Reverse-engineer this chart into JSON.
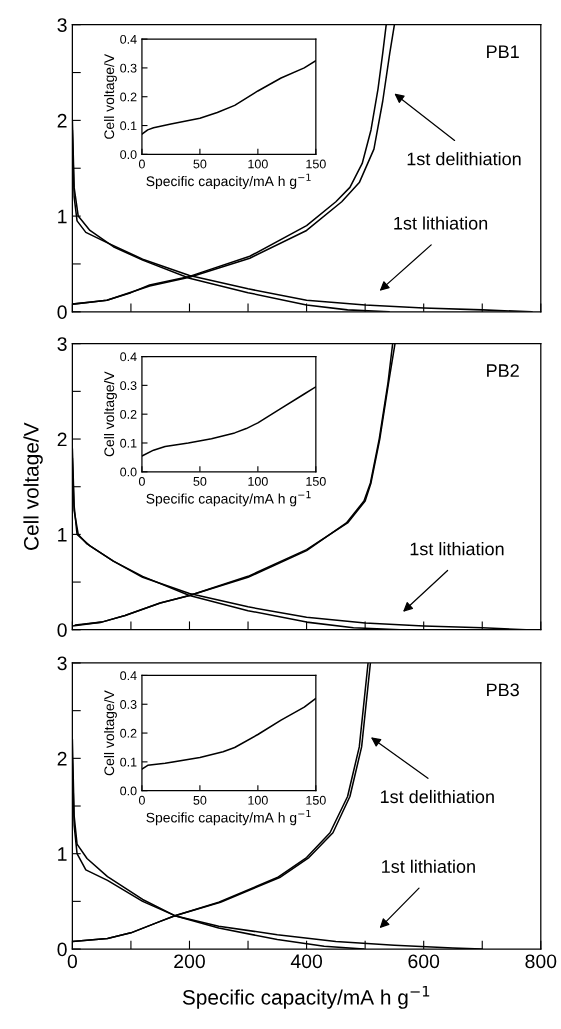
{
  "chart_data": [
    {
      "type": "line",
      "title": "PB1",
      "xlim": [
        0,
        800
      ],
      "ylim": [
        0,
        3
      ],
      "tick_labels": "y",
      "xticks": [
        {
          "value": 0,
          "label": null
        },
        {
          "value": 100,
          "label": null
        },
        {
          "value": 200,
          "label": null
        },
        {
          "value": 300,
          "label": null
        },
        {
          "value": 400,
          "label": null
        },
        {
          "value": 500,
          "label": null
        },
        {
          "value": 600,
          "label": null
        },
        {
          "value": 700,
          "label": null
        },
        {
          "value": 800,
          "label": null
        }
      ],
      "yticks": [
        0,
        {
          "value": 0.5,
          "label": null
        },
        1,
        {
          "value": 1.5,
          "label": null
        },
        2,
        {
          "value": 2.5,
          "label": null
        },
        3
      ],
      "annotations": [
        "1st delithiation",
        "1st lithiation"
      ],
      "series": [
        {
          "color": "#000000",
          "x": [
            0,
            3,
            10,
            30,
            70,
            120,
            200,
            300,
            400,
            470,
            541
          ],
          "values": [
            2.0,
            1.3,
            1.0,
            0.85,
            0.68,
            0.54,
            0.35,
            0.2,
            0.07,
            0.02,
            0
          ]
        },
        {
          "color": "#000000",
          "x": [
            0,
            3,
            8,
            23,
            60,
            120,
            200,
            300,
            400,
            500,
            600,
            700,
            785
          ],
          "values": [
            1.9,
            1.2,
            0.95,
            0.83,
            0.72,
            0.55,
            0.38,
            0.24,
            0.12,
            0.07,
            0.04,
            0.02,
            0
          ]
        },
        {
          "color": "#000000",
          "x": [
            0,
            30,
            59,
            100,
            132,
            200,
            303,
            400,
            450,
            474,
            495,
            510,
            522,
            530,
            536
          ],
          "values": [
            0.08,
            0.1,
            0.12,
            0.2,
            0.28,
            0.37,
            0.58,
            0.9,
            1.15,
            1.3,
            1.55,
            1.9,
            2.33,
            2.7,
            3.0
          ]
        },
        {
          "color": "#000000",
          "x": [
            0,
            59,
            132,
            200,
            303,
            400,
            460,
            490,
            515,
            530,
            542,
            550
          ],
          "values": [
            0.08,
            0.12,
            0.27,
            0.36,
            0.56,
            0.85,
            1.15,
            1.35,
            1.7,
            2.2,
            2.7,
            3.0
          ]
        }
      ]
    },
    {
      "type": "line",
      "xlabel": "Specific capacity/mA h g$^{−1}$",
      "ylabel": "Cell voltage/V",
      "xlim": [
        0,
        150
      ],
      "ylim": [
        0,
        0.4
      ],
      "xticks": [
        0,
        50,
        100,
        150
      ],
      "yticks": [
        {
          "value": 0,
          "label": "0.0"
        },
        0.1,
        0.2,
        0.3,
        0.4
      ],
      "series": [
        {
          "color": "#000000",
          "x": [
            0,
            5,
            10,
            25,
            50,
            65,
            80,
            100,
            120,
            140,
            150
          ],
          "values": [
            0.07,
            0.085,
            0.092,
            0.105,
            0.125,
            0.145,
            0.17,
            0.22,
            0.265,
            0.3,
            0.325
          ]
        }
      ]
    },
    {
      "type": "line",
      "title": "PB2",
      "ylabel": "Cell voltage/V",
      "xlim": [
        0,
        800
      ],
      "ylim": [
        0,
        3
      ],
      "tick_labels": "y",
      "xticks": [
        {
          "value": 0,
          "label": null
        },
        {
          "value": 100,
          "label": null
        },
        {
          "value": 200,
          "label": null
        },
        {
          "value": 300,
          "label": null
        },
        {
          "value": 400,
          "label": null
        },
        {
          "value": 500,
          "label": null
        },
        {
          "value": 600,
          "label": null
        },
        {
          "value": 700,
          "label": null
        },
        {
          "value": 800,
          "label": null
        }
      ],
      "yticks": [
        0,
        {
          "value": 0.5,
          "label": null
        },
        1,
        {
          "value": 1.5,
          "label": null
        },
        2,
        {
          "value": 2.5,
          "label": null
        },
        3
      ],
      "annotations": [
        "1st lithiation"
      ],
      "series": [
        {
          "color": "#000000",
          "x": [
            0,
            3,
            8,
            30,
            70,
            120,
            200,
            300,
            400,
            480,
            560
          ],
          "values": [
            1.9,
            1.3,
            1.0,
            0.88,
            0.72,
            0.56,
            0.36,
            0.2,
            0.08,
            0.02,
            0
          ]
        },
        {
          "color": "#000000",
          "x": [
            0,
            3,
            10,
            25,
            70,
            120,
            200,
            300,
            400,
            500,
            600,
            700,
            775
          ],
          "values": [
            1.8,
            1.25,
            1.0,
            0.9,
            0.72,
            0.55,
            0.38,
            0.24,
            0.13,
            0.07,
            0.04,
            0.02,
            0
          ]
        },
        {
          "color": "#000000",
          "x": [
            0,
            50,
            90,
            150,
            200,
            300,
            400,
            470,
            500,
            510,
            525,
            540,
            551
          ],
          "values": [
            0.04,
            0.08,
            0.15,
            0.28,
            0.36,
            0.56,
            0.84,
            1.12,
            1.35,
            1.54,
            2.0,
            2.59,
            3.0
          ]
        },
        {
          "color": "#000000",
          "x": [
            5,
            50,
            90,
            150,
            200,
            300,
            400,
            468,
            498,
            509,
            524,
            539,
            547
          ],
          "values": [
            0.05,
            0.08,
            0.15,
            0.28,
            0.36,
            0.55,
            0.83,
            1.12,
            1.35,
            1.54,
            2.0,
            2.59,
            3.0
          ]
        }
      ]
    },
    {
      "type": "line",
      "xlabel": "Specific capacity/mA h g$^{−1}$",
      "ylabel": "Cell voltage/V",
      "xlim": [
        0,
        150
      ],
      "ylim": [
        0,
        0.4
      ],
      "xticks": [
        0,
        50,
        100,
        150
      ],
      "yticks": [
        {
          "value": 0,
          "label": "0.0"
        },
        0.1,
        0.2,
        0.3,
        0.4
      ],
      "series": [
        {
          "color": "#000000",
          "x": [
            0,
            10,
            20,
            40,
            60,
            80,
            90,
            100,
            120,
            140,
            150
          ],
          "values": [
            0.055,
            0.075,
            0.088,
            0.1,
            0.115,
            0.135,
            0.15,
            0.17,
            0.22,
            0.27,
            0.295
          ]
        }
      ]
    },
    {
      "type": "line",
      "title": "PB3",
      "xlabel": "Specific capacity/mA h g$^{−1}$",
      "xlim": [
        0,
        800
      ],
      "ylim": [
        0,
        3
      ],
      "xticks": [
        0,
        {
          "value": 100,
          "label": null
        },
        200,
        {
          "value": 300,
          "label": null
        },
        400,
        {
          "value": 500,
          "label": null
        },
        600,
        {
          "value": 700,
          "label": null
        },
        800
      ],
      "yticks": [
        0,
        {
          "value": 0.5,
          "label": null
        },
        1,
        {
          "value": 1.5,
          "label": null
        },
        2,
        {
          "value": 2.5,
          "label": null
        },
        3
      ],
      "annotations": [
        "1st delithiation",
        "1st lithiation"
      ],
      "series": [
        {
          "color": "#000000",
          "x": [
            0,
            3,
            8,
            25,
            60,
            120,
            175,
            250,
            350,
            430,
            498
          ],
          "values": [
            2.2,
            1.4,
            1.1,
            0.95,
            0.76,
            0.52,
            0.35,
            0.22,
            0.1,
            0.03,
            0
          ]
        },
        {
          "color": "#000000",
          "x": [
            0,
            3,
            8,
            23,
            60,
            120,
            175,
            250,
            350,
            450,
            550,
            650,
            700
          ],
          "values": [
            2.0,
            1.3,
            1.0,
            0.83,
            0.72,
            0.5,
            0.35,
            0.24,
            0.15,
            0.08,
            0.04,
            0.01,
            0
          ]
        },
        {
          "color": "#000000",
          "x": [
            0,
            60,
            100,
            150,
            175,
            250,
            350,
            400,
            440,
            470,
            490,
            505
          ],
          "values": [
            0.08,
            0.11,
            0.17,
            0.29,
            0.35,
            0.49,
            0.75,
            0.96,
            1.22,
            1.6,
            2.12,
            3.0
          ]
        },
        {
          "color": "#000000",
          "x": [
            0,
            60,
            100,
            150,
            175,
            253,
            354,
            404,
            445,
            474,
            494,
            509
          ],
          "values": [
            0.08,
            0.11,
            0.17,
            0.29,
            0.35,
            0.49,
            0.75,
            0.96,
            1.22,
            1.6,
            2.12,
            3.0
          ]
        }
      ]
    },
    {
      "type": "line",
      "xlabel": "Specific capacity/mA h g$^{−1}$",
      "ylabel": "Cell voltage/V",
      "xlim": [
        0,
        150
      ],
      "ylim": [
        0,
        0.4
      ],
      "xticks": [
        0,
        50,
        100,
        150
      ],
      "yticks": [
        {
          "value": 0,
          "label": "0.0"
        },
        0.1,
        0.2,
        0.3,
        0.4
      ],
      "series": [
        {
          "color": "#000000",
          "x": [
            0,
            5,
            20,
            50,
            70,
            80,
            100,
            120,
            140,
            150
          ],
          "values": [
            0.075,
            0.088,
            0.095,
            0.115,
            0.135,
            0.15,
            0.195,
            0.245,
            0.29,
            0.32
          ]
        }
      ]
    }
  ]
}
